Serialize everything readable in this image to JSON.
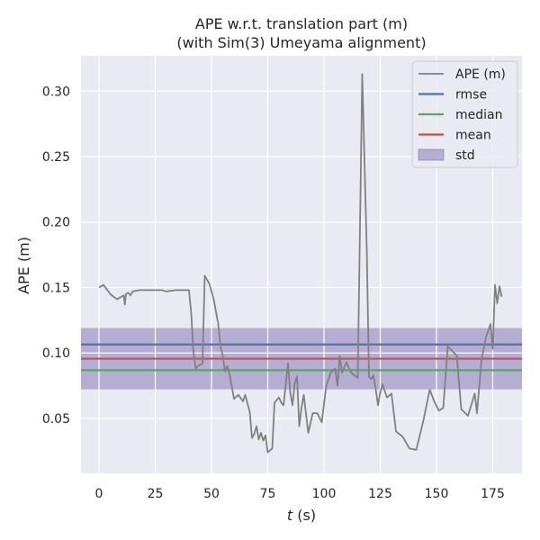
{
  "chart_data": {
    "type": "line",
    "title_line1": "APE w.r.t. translation part (m)",
    "title_line2": "(with Sim(3) Umeyama alignment)",
    "xlabel_var": "t",
    "xlabel_unit": " (s)",
    "ylabel": "APE (m)",
    "xlim": [
      -8,
      188
    ],
    "ylim": [
      0.008,
      0.327
    ],
    "xticks": [
      0,
      25,
      50,
      75,
      100,
      125,
      150,
      175
    ],
    "yticks": [
      0.05,
      0.1,
      0.15,
      0.2,
      0.25,
      0.3
    ],
    "ytick_labels": [
      "0.05",
      "0.10",
      "0.15",
      "0.20",
      "0.25",
      "0.30"
    ],
    "grid": true,
    "legend_position": "top-right",
    "stats": {
      "rmse": 0.1065,
      "median": 0.0868,
      "mean": 0.0956,
      "std_low": 0.0722,
      "std_high": 0.119
    },
    "legend": [
      {
        "key": "ape",
        "label": "APE (m)",
        "color": "#808080",
        "kind": "line"
      },
      {
        "key": "rmse",
        "label": "rmse",
        "color": "#4c72b0",
        "kind": "line"
      },
      {
        "key": "median",
        "label": "median",
        "color": "#55a868",
        "kind": "line"
      },
      {
        "key": "mean",
        "label": "mean",
        "color": "#c44e52",
        "kind": "line"
      },
      {
        "key": "std",
        "label": "std",
        "color": "#8172b2",
        "kind": "patch"
      }
    ],
    "series": [
      {
        "name": "APE (m)",
        "color": "#808080",
        "x": [
          0,
          2,
          5,
          8,
          11,
          11.5,
          12,
          13,
          14,
          15,
          18,
          22,
          25,
          28,
          30,
          34,
          37,
          40,
          41,
          42,
          43,
          44,
          46,
          47,
          49,
          51,
          53,
          54,
          55,
          56,
          57,
          58,
          60,
          62,
          64,
          65,
          67,
          68,
          69,
          70,
          71,
          72,
          73,
          74,
          75,
          77,
          78,
          80,
          81,
          82,
          84,
          85,
          86,
          87,
          88,
          89,
          90,
          91,
          93,
          95,
          97,
          99,
          101,
          103,
          105,
          106,
          107,
          108,
          110,
          112,
          115,
          117,
          119,
          120,
          121,
          122,
          123,
          124,
          125,
          126,
          128,
          130,
          132,
          135,
          138,
          141,
          144,
          147,
          149,
          151,
          153,
          155,
          159,
          161,
          164,
          167,
          168,
          170,
          172,
          174,
          175,
          176,
          177,
          178,
          179
        ],
        "y": [
          0.15,
          0.152,
          0.145,
          0.141,
          0.144,
          0.137,
          0.145,
          0.146,
          0.144,
          0.147,
          0.148,
          0.148,
          0.148,
          0.148,
          0.147,
          0.148,
          0.148,
          0.148,
          0.13,
          0.1,
          0.088,
          0.09,
          0.092,
          0.159,
          0.153,
          0.141,
          0.122,
          0.105,
          0.098,
          0.086,
          0.09,
          0.084,
          0.065,
          0.068,
          0.063,
          0.068,
          0.055,
          0.035,
          0.038,
          0.044,
          0.034,
          0.039,
          0.033,
          0.037,
          0.024,
          0.027,
          0.062,
          0.066,
          0.062,
          0.06,
          0.092,
          0.07,
          0.06,
          0.077,
          0.082,
          0.044,
          0.058,
          0.068,
          0.039,
          0.054,
          0.054,
          0.047,
          0.075,
          0.085,
          0.088,
          0.075,
          0.098,
          0.085,
          0.093,
          0.085,
          0.081,
          0.313,
          0.18,
          0.082,
          0.08,
          0.083,
          0.072,
          0.06,
          0.07,
          0.076,
          0.066,
          0.069,
          0.04,
          0.036,
          0.027,
          0.026,
          0.047,
          0.072,
          0.063,
          0.056,
          0.058,
          0.105,
          0.098,
          0.057,
          0.052,
          0.069,
          0.054,
          0.095,
          0.112,
          0.122,
          0.103,
          0.152,
          0.138,
          0.151,
          0.143
        ]
      }
    ]
  }
}
